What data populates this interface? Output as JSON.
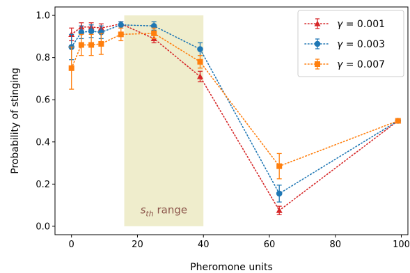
{
  "chart_data": {
    "type": "line",
    "xlabel": "Pheromone units",
    "ylabel": "Probability of stinging",
    "xlim": [
      -5,
      102
    ],
    "ylim": [
      -0.04,
      1.04
    ],
    "xticks": [
      0,
      20,
      40,
      60,
      80,
      100
    ],
    "yticks": [
      0.0,
      0.2,
      0.4,
      0.6,
      0.8,
      1.0
    ],
    "xtick_labels": [
      "0",
      "20",
      "40",
      "60",
      "80",
      "100"
    ],
    "ytick_labels": [
      "0.0",
      "0.2",
      "0.4",
      "0.6",
      "0.8",
      "1.0"
    ],
    "grid": false,
    "legend_position": "top-right",
    "highlight_band": {
      "x_start": 16,
      "x_end": 40,
      "color": "#efedcc",
      "label_main": "s",
      "label_sub": "th",
      "label_rest": " range",
      "label_color": "#8c564b"
    },
    "series": [
      {
        "name": "γ = 0.001",
        "color": "#d62728",
        "marker": "triangle",
        "x": [
          0,
          3,
          6,
          9,
          15,
          25,
          39,
          63,
          99
        ],
        "y": [
          0.91,
          0.945,
          0.945,
          0.94,
          0.96,
          0.89,
          0.71,
          0.075,
          0.5
        ],
        "yerr": [
          0.03,
          0.02,
          0.02,
          0.02,
          0.01,
          0.02,
          0.025,
          0.02,
          0.0
        ]
      },
      {
        "name": "γ = 0.003",
        "color": "#1f77b4",
        "marker": "circle",
        "x": [
          0,
          3,
          6,
          9,
          15,
          25,
          39,
          63,
          99
        ],
        "y": [
          0.85,
          0.92,
          0.925,
          0.92,
          0.955,
          0.95,
          0.84,
          0.155,
          0.5
        ],
        "yerr": [
          0.06,
          0.03,
          0.03,
          0.03,
          0.015,
          0.02,
          0.03,
          0.04,
          0.0
        ]
      },
      {
        "name": "γ = 0.007",
        "color": "#ff7f0e",
        "marker": "square",
        "x": [
          0,
          3,
          6,
          9,
          15,
          25,
          39,
          63,
          99
        ],
        "y": [
          0.75,
          0.86,
          0.86,
          0.865,
          0.91,
          0.915,
          0.78,
          0.285,
          0.5
        ],
        "yerr": [
          0.1,
          0.05,
          0.05,
          0.05,
          0.03,
          0.025,
          0.03,
          0.06,
          0.0
        ]
      }
    ]
  }
}
